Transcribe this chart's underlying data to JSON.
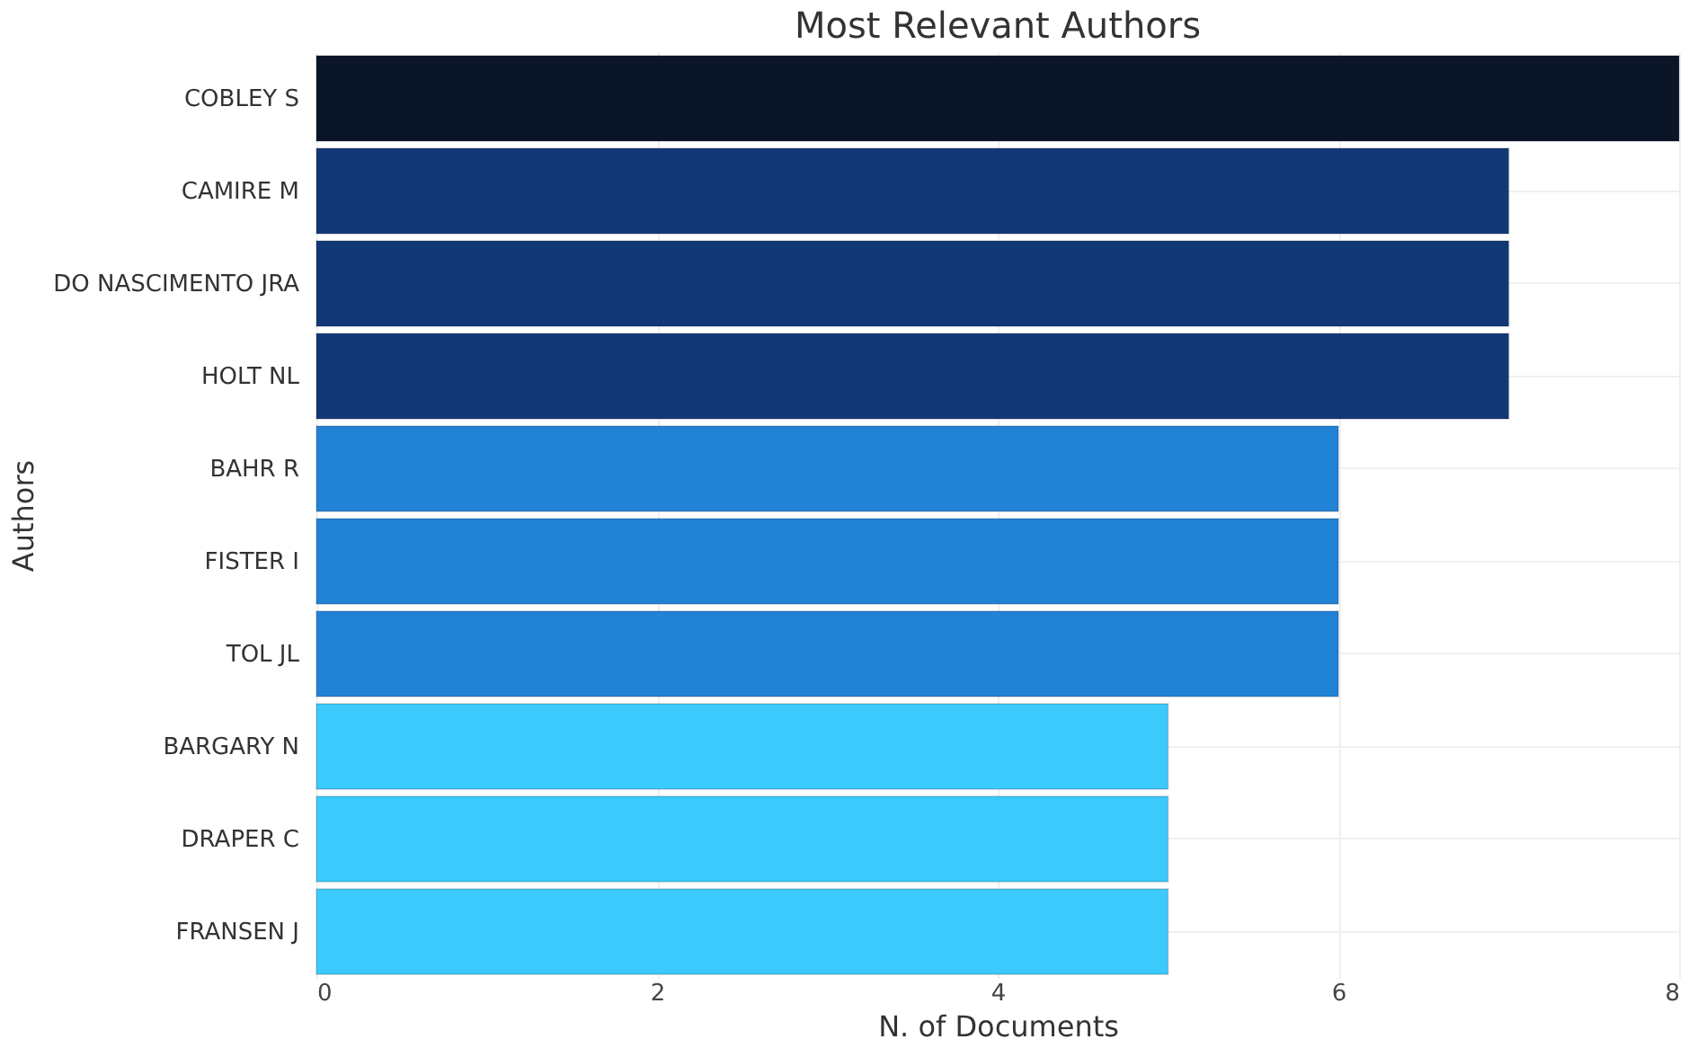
{
  "chart_data": {
    "type": "bar",
    "orientation": "horizontal",
    "title": "Most Relevant Authors",
    "xlabel": "N. of Documents",
    "ylabel": "Authors",
    "categories": [
      "COBLEY S",
      "CAMIRE M",
      "DO NASCIMENTO JRA",
      "HOLT NL",
      "BAHR R",
      "FISTER I",
      "TOL JL",
      "BARGARY N",
      "DRAPER C",
      "FRANSEN J"
    ],
    "values": [
      8,
      7,
      7,
      7,
      6,
      6,
      6,
      5,
      5,
      5
    ],
    "colors": [
      "#0a1527",
      "#133876",
      "#133876",
      "#133876",
      "#2282d5",
      "#2282d5",
      "#2282d5",
      "#3ccafc",
      "#3ccafc",
      "#3ccafc"
    ],
    "xlim": [
      0,
      8
    ],
    "xticks": [
      0,
      2,
      4,
      6,
      8
    ],
    "grid": true
  }
}
